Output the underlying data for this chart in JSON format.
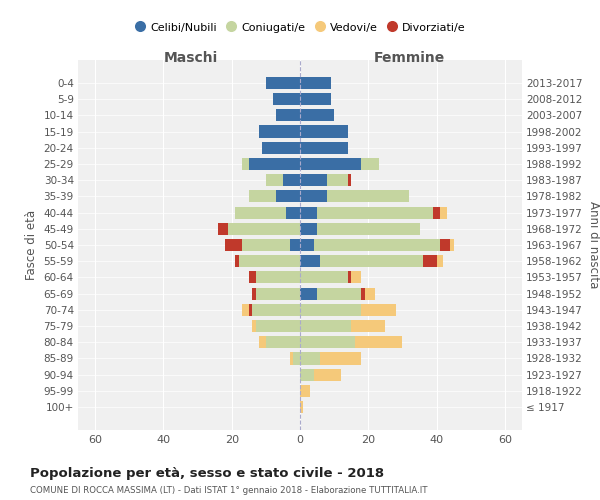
{
  "age_groups": [
    "100+",
    "95-99",
    "90-94",
    "85-89",
    "80-84",
    "75-79",
    "70-74",
    "65-69",
    "60-64",
    "55-59",
    "50-54",
    "45-49",
    "40-44",
    "35-39",
    "30-34",
    "25-29",
    "20-24",
    "15-19",
    "10-14",
    "5-9",
    "0-4"
  ],
  "birth_years": [
    "≤ 1917",
    "1918-1922",
    "1923-1927",
    "1928-1932",
    "1933-1937",
    "1938-1942",
    "1943-1947",
    "1948-1952",
    "1953-1957",
    "1958-1962",
    "1963-1967",
    "1968-1972",
    "1973-1977",
    "1978-1982",
    "1983-1987",
    "1988-1992",
    "1993-1997",
    "1998-2002",
    "2003-2007",
    "2008-2012",
    "2013-2017"
  ],
  "colors": {
    "celibi": "#3a6ea5",
    "coniugati": "#c5d5a0",
    "vedovi": "#f5c97a",
    "divorziati": "#c0392b"
  },
  "males": {
    "celibi": [
      0,
      0,
      0,
      0,
      0,
      0,
      0,
      0,
      0,
      0,
      3,
      0,
      4,
      7,
      5,
      15,
      11,
      12,
      7,
      8,
      10
    ],
    "coniugati": [
      0,
      0,
      0,
      2,
      10,
      13,
      14,
      13,
      13,
      18,
      14,
      21,
      15,
      8,
      5,
      2,
      0,
      0,
      0,
      0,
      0
    ],
    "vedovi": [
      0,
      0,
      0,
      1,
      2,
      1,
      2,
      0,
      0,
      0,
      0,
      0,
      0,
      0,
      0,
      0,
      0,
      0,
      0,
      0,
      0
    ],
    "divorziati": [
      0,
      0,
      0,
      0,
      0,
      0,
      1,
      1,
      2,
      1,
      5,
      3,
      0,
      0,
      0,
      0,
      0,
      0,
      0,
      0,
      0
    ]
  },
  "females": {
    "celibi": [
      0,
      0,
      0,
      0,
      0,
      0,
      0,
      5,
      0,
      6,
      4,
      5,
      5,
      8,
      8,
      18,
      14,
      14,
      10,
      9,
      9
    ],
    "coniugati": [
      0,
      0,
      4,
      6,
      16,
      15,
      18,
      13,
      14,
      30,
      37,
      30,
      34,
      24,
      6,
      5,
      0,
      0,
      0,
      0,
      0
    ],
    "vedovi": [
      1,
      3,
      8,
      12,
      14,
      10,
      10,
      3,
      3,
      2,
      1,
      0,
      2,
      0,
      0,
      0,
      0,
      0,
      0,
      0,
      0
    ],
    "divorziati": [
      0,
      0,
      0,
      0,
      0,
      0,
      0,
      1,
      1,
      4,
      3,
      0,
      2,
      0,
      1,
      0,
      0,
      0,
      0,
      0,
      0
    ]
  },
  "xlim": 65,
  "title": "Popolazione per età, sesso e stato civile - 2018",
  "subtitle": "COMUNE DI ROCCA MASSIMA (LT) - Dati ISTAT 1° gennaio 2018 - Elaborazione TUTTITALIA.IT",
  "xlabel_left": "Maschi",
  "xlabel_right": "Femmine",
  "ylabel_left": "Fasce di età",
  "ylabel_right": "Anni di nascita",
  "legend_labels": [
    "Celibi/Nubili",
    "Coniugati/e",
    "Vedovi/e",
    "Divorziati/e"
  ],
  "bg_color": "#f0f0f0"
}
